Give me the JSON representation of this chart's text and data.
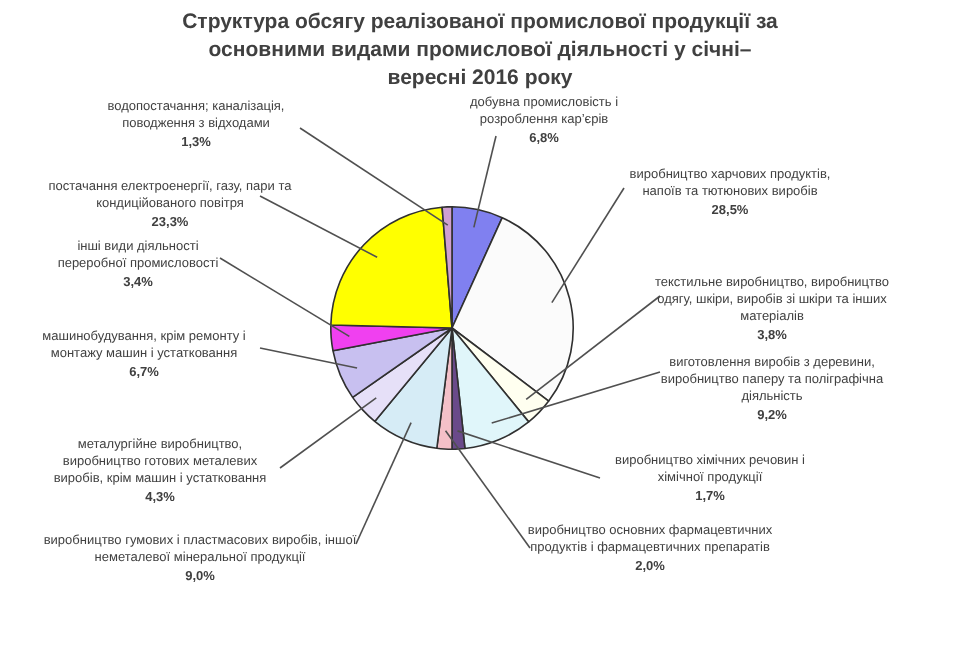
{
  "chart_data": {
    "type": "pie",
    "title": "Структура обсягу реалізованої промислової продукції за основними видами промислової діяльності у січні–вересні 2016 року",
    "categories": [
      "добувна промисловість і розроблення кар’єрів",
      "виробництво харчових продуктів, напоїв та тютюнових виробів",
      "текстильне виробництво, виробництво одягу, шкіри, виробів зі шкіри та інших матеріалів",
      "виготовлення виробів з деревини, виробництво паперу та поліграфічна діяльність",
      "виробництво хімічних речовин і хімічної продукції",
      "виробництво основних фармацевтичних продуктів і фармацевтичних препаратів",
      "виробництво гумових і пластмасових виробів, іншої неметалевої мінеральної продукції",
      "металургійне виробництво, виробництво готових металевих виробів, крім машин і устатковання",
      "машинобудування, крім ремонту і монтажу машин і устатковання",
      "інші види діяльності переробної промисловості",
      "постачання електроенергії, газу, пари та кондиційованого повітря",
      "водопостачання; каналізація, поводження з відходами"
    ],
    "values": [
      6.8,
      28.5,
      3.8,
      9.2,
      1.7,
      2.0,
      9.0,
      4.3,
      6.7,
      3.4,
      23.3,
      1.3
    ],
    "value_labels": [
      "6,8%",
      "28,5%",
      "3,8%",
      "9,2%",
      "1,7%",
      "2,0%",
      "9,0%",
      "4,3%",
      "6,7%",
      "3,4%",
      "23,3%",
      "1,3%"
    ],
    "colors": [
      "#8080f0",
      "#fbfbfb",
      "#fffff0",
      "#e0f6fa",
      "#6a4a8a",
      "#f4c0c8",
      "#d6ecf6",
      "#e6e0f8",
      "#c8c0f0",
      "#f040f0",
      "#ffff00",
      "#d0a0d0"
    ]
  }
}
